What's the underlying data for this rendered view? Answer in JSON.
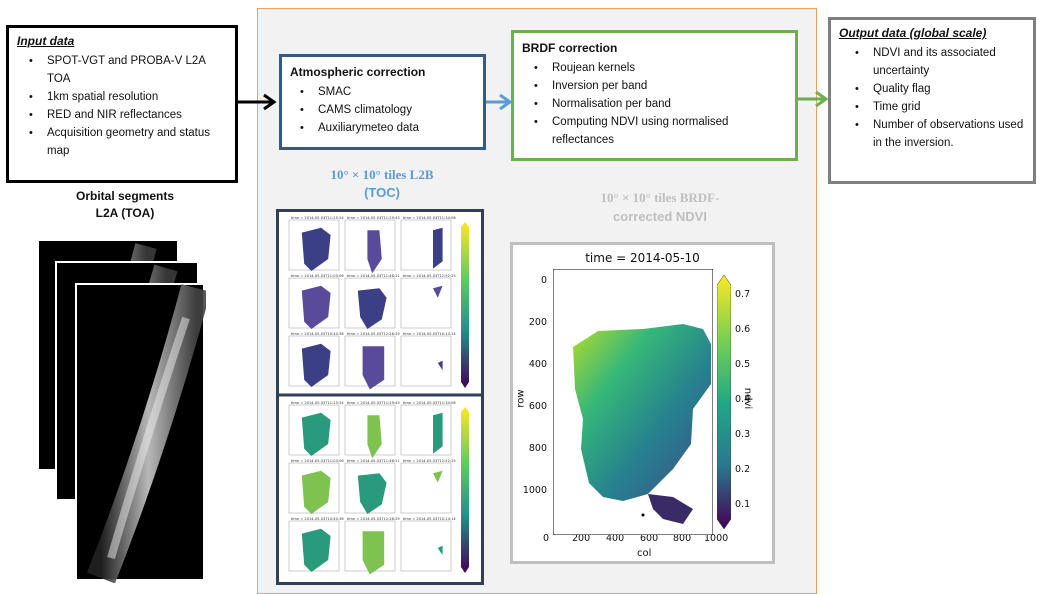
{
  "input_box": {
    "title": "Input data",
    "items": [
      "SPOT-VGT and PROBA-V L2A TOA",
      "1km spatial resolution",
      "RED and NIR reflectances",
      "Acquisition geometry and status map"
    ]
  },
  "orbital": {
    "line1": "Orbital segments",
    "line2": "L2A (TOA)"
  },
  "atmos_box": {
    "title": "Atmospheric correction",
    "items": [
      "SMAC",
      "CAMS climatology",
      "Auxiliarymeteo data"
    ]
  },
  "brdf_box": {
    "title": "BRDF correction",
    "items": [
      "Roujean kernels",
      "Inversion per band",
      "Normalisation per band",
      "Computing NDVI using normalised reflectances"
    ]
  },
  "output_box": {
    "title": "Output data (global scale)",
    "items": [
      "NDVI and its associated uncertainty",
      "Quality flag",
      "Time grid",
      "Number of observations used in the inversion."
    ]
  },
  "l2b_caption": {
    "line1": "10° × 10°  tiles L2B",
    "line2": "(TOC)"
  },
  "brdf_caption": {
    "line1": "10° × 10°  tiles BRDF-",
    "line2": "corrected NDVI"
  },
  "ndvi_map": {
    "title": "time = 2014-05-10",
    "xlabel": "col",
    "ylabel": "row",
    "colorbar_label": "ndvi",
    "x_ticks": [
      "0",
      "200",
      "400",
      "600",
      "800",
      "1000"
    ],
    "y_ticks": [
      "0",
      "200",
      "400",
      "600",
      "800",
      "1000"
    ],
    "cbar_ticks": [
      "0.7",
      "0.6",
      "0.5",
      "0.4",
      "0.3",
      "0.2",
      "0.1"
    ]
  },
  "small_grid": {
    "times": [
      "time = 2014-05-03T11:25:24",
      "time = 2014-05-03T11:29:43",
      "time = 2014-05-03T11:34:08",
      "time = 2014-05-03T11:03:06",
      "time = 2014-05-03T11:46:21",
      "time = 2014-05-03T12:52:25",
      "time = 2014-05-03T10:40:36",
      "time = 2014-05-03T12:28:29",
      "time = 2014-05-03T10:14:14"
    ]
  },
  "colors": {
    "input_border": "#000000",
    "atmos_border": "#2e5d8c",
    "brdf_border": "#6ab04c",
    "output_border": "#7f7f7f",
    "orange_frame": "#f0a060",
    "l2b_caption": "#5b9bd5",
    "brdf_caption": "#bfbfbf"
  }
}
